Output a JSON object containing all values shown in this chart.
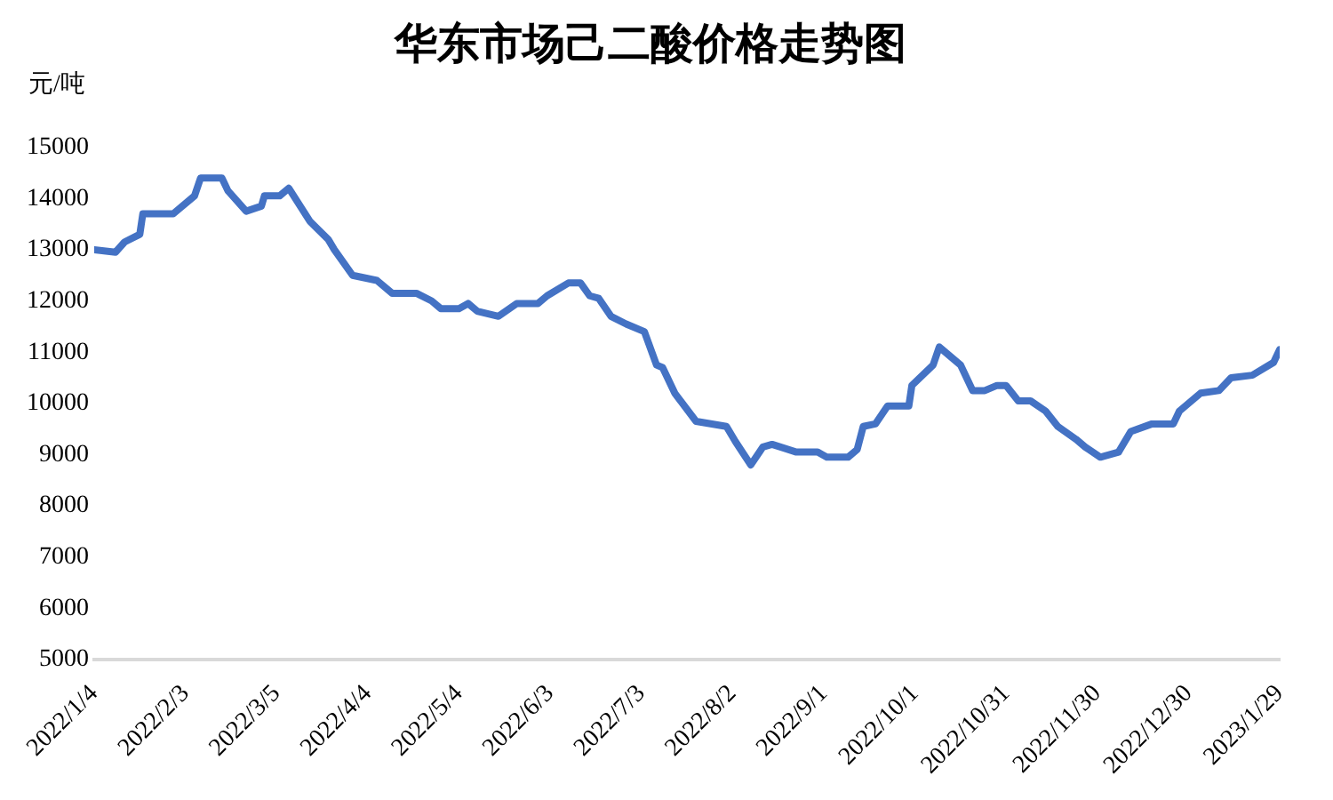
{
  "chart_data": {
    "type": "line",
    "title": "华东市场己二酸价格走势图",
    "ylabel": "元/吨",
    "x": [
      "2022-01-04",
      "2022-01-11",
      "2022-01-14",
      "2022-01-19",
      "2022-01-20",
      "2022-01-30",
      "2022-02-06",
      "2022-02-08",
      "2022-02-15",
      "2022-02-17",
      "2022-02-23",
      "2022-02-28",
      "2022-03-01",
      "2022-03-06",
      "2022-03-09",
      "2022-03-16",
      "2022-03-22",
      "2022-03-24",
      "2022-03-30",
      "2022-04-07",
      "2022-04-12",
      "2022-04-20",
      "2022-04-25",
      "2022-04-28",
      "2022-05-04",
      "2022-05-07",
      "2022-05-10",
      "2022-05-17",
      "2022-05-23",
      "2022-05-30",
      "2022-06-02",
      "2022-06-09",
      "2022-06-13",
      "2022-06-16",
      "2022-06-19",
      "2022-06-23",
      "2022-06-28",
      "2022-07-04",
      "2022-07-08",
      "2022-07-10",
      "2022-07-14",
      "2022-07-21",
      "2022-07-31",
      "2022-08-03",
      "2022-08-08",
      "2022-08-12",
      "2022-08-15",
      "2022-08-23",
      "2022-08-30",
      "2022-09-02",
      "2022-09-09",
      "2022-09-12",
      "2022-09-14",
      "2022-09-18",
      "2022-09-22",
      "2022-09-29",
      "2022-09-30",
      "2022-10-07",
      "2022-10-09",
      "2022-10-16",
      "2022-10-20",
      "2022-10-24",
      "2022-10-28",
      "2022-10-31",
      "2022-11-04",
      "2022-11-08",
      "2022-11-13",
      "2022-11-17",
      "2022-11-23",
      "2022-11-26",
      "2022-12-01",
      "2022-12-07",
      "2022-12-11",
      "2022-12-18",
      "2022-12-25",
      "2022-12-27",
      "2023-01-03",
      "2023-01-09",
      "2023-01-13",
      "2023-01-20",
      "2023-01-27",
      "2023-01-29"
    ],
    "series": [
      {
        "color": "#4472c4",
        "values": [
          13000,
          12950,
          13150,
          13300,
          13700,
          13700,
          14050,
          14400,
          14400,
          14150,
          13750,
          13850,
          14050,
          14050,
          14200,
          13550,
          13200,
          13000,
          12500,
          12400,
          12150,
          12150,
          12000,
          11850,
          11850,
          11950,
          11800,
          11700,
          11950,
          11950,
          12100,
          12350,
          12350,
          12100,
          12050,
          11700,
          11550,
          11400,
          10750,
          10700,
          10200,
          9650,
          9550,
          9250,
          8800,
          9150,
          9200,
          9050,
          9050,
          8950,
          8950,
          9100,
          9550,
          9600,
          9950,
          9950,
          10350,
          10750,
          11100,
          10750,
          10250,
          10250,
          10350,
          10350,
          10050,
          10050,
          9850,
          9550,
          9300,
          9150,
          8950,
          9050,
          9450,
          9600,
          9600,
          9850,
          10200,
          10250,
          10500,
          10550,
          10800,
          11050
        ]
      }
    ],
    "xlim": [
      "2022-01-04",
      "2023-01-29"
    ],
    "xticks": [
      {
        "value": "2022-01-04",
        "label": "2022/1/4"
      },
      {
        "value": "2022-02-03",
        "label": "2022/2/3"
      },
      {
        "value": "2022-03-05",
        "label": "2022/3/5"
      },
      {
        "value": "2022-04-04",
        "label": "2022/4/4"
      },
      {
        "value": "2022-05-04",
        "label": "2022/5/4"
      },
      {
        "value": "2022-06-03",
        "label": "2022/6/3"
      },
      {
        "value": "2022-07-03",
        "label": "2022/7/3"
      },
      {
        "value": "2022-08-02",
        "label": "2022/8/2"
      },
      {
        "value": "2022-09-01",
        "label": "2022/9/1"
      },
      {
        "value": "2022-10-01",
        "label": "2022/10/1"
      },
      {
        "value": "2022-10-31",
        "label": "2022/10/31"
      },
      {
        "value": "2022-11-30",
        "label": "2022/11/30"
      },
      {
        "value": "2022-12-30",
        "label": "2022/12/30"
      },
      {
        "value": "2023-01-29",
        "label": "2023/1/29"
      }
    ],
    "ylim": [
      5000,
      15000
    ],
    "yticks": [
      5000,
      6000,
      7000,
      8000,
      9000,
      10000,
      11000,
      12000,
      13000,
      14000,
      15000
    ],
    "grid": false,
    "legend": false,
    "marker": "none",
    "line_style": "solid"
  }
}
